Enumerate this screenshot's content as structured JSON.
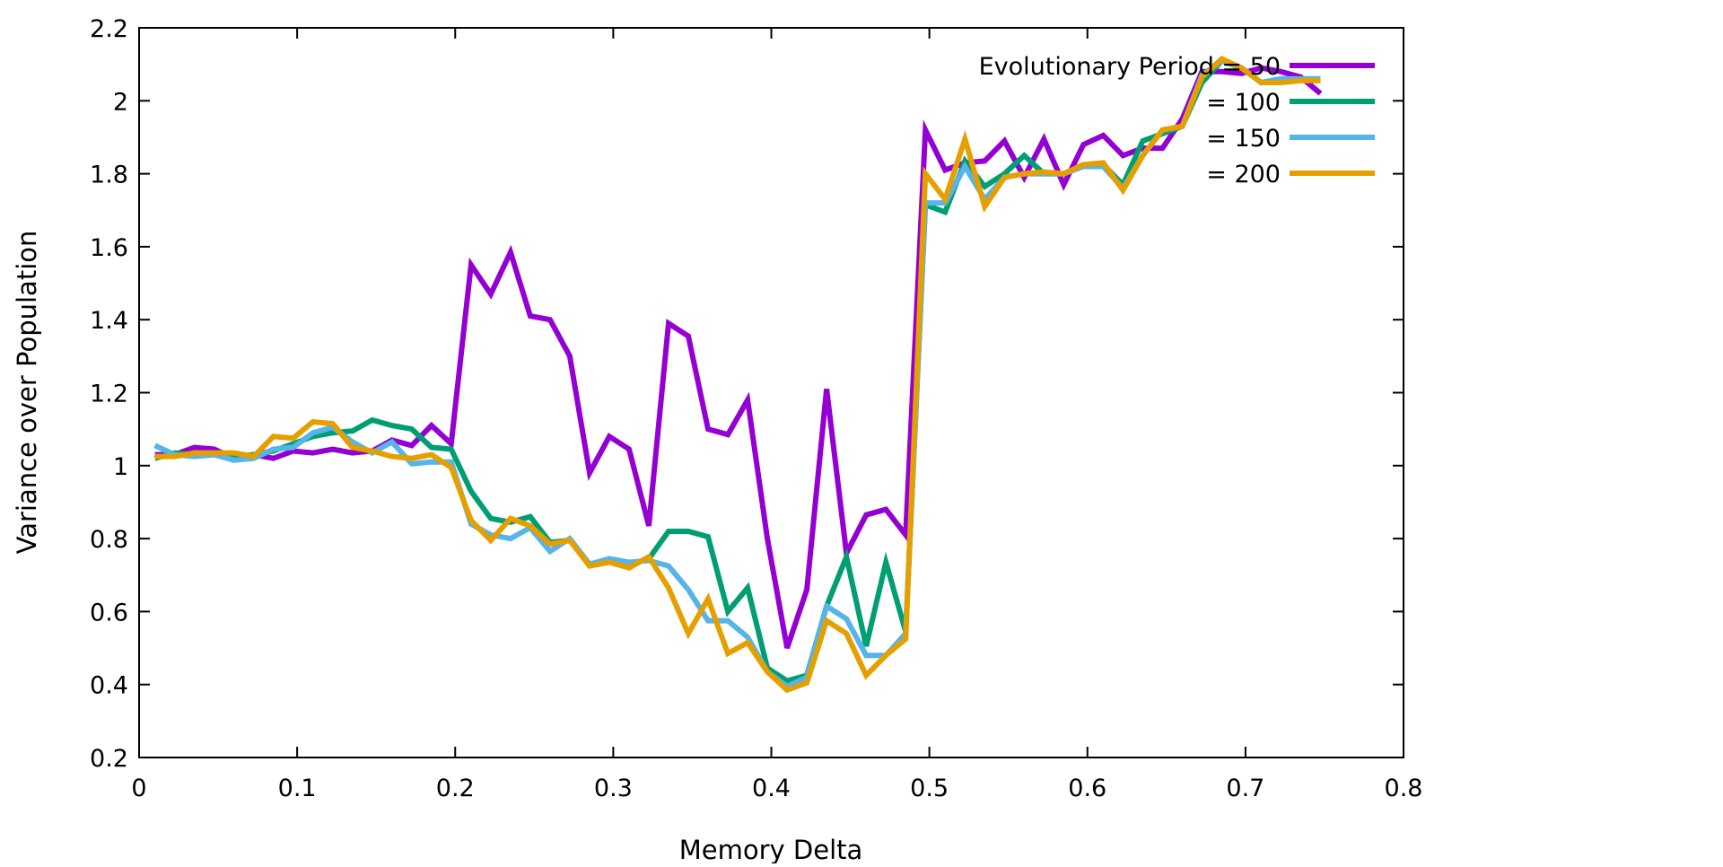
{
  "chart_data": {
    "type": "line",
    "title": "",
    "xlabel": "Memory Delta",
    "ylabel": "Variance over Population",
    "xlim": [
      0,
      0.8
    ],
    "ylim": [
      0.2,
      2.2
    ],
    "xticks": [
      0,
      0.1,
      0.2,
      0.3,
      0.4,
      0.5,
      0.6,
      0.7,
      0.8
    ],
    "xtick_labels": [
      "0",
      "0.1",
      "0.2",
      "0.3",
      "0.4",
      "0.5",
      "0.6",
      "0.7",
      "0.8"
    ],
    "yticks": [
      0.2,
      0.4,
      0.6,
      0.8,
      1.0,
      1.2,
      1.4,
      1.6,
      1.8,
      2.0,
      2.2
    ],
    "ytick_labels": [
      "0.2",
      "0.4",
      "0.6",
      "0.8",
      "1",
      "1.2",
      "1.4",
      "1.6",
      "1.8",
      "2",
      "2.2"
    ],
    "grid": false,
    "legend_position": "top-right",
    "x": [
      0.01,
      0.0225,
      0.035,
      0.0475,
      0.06,
      0.0725,
      0.085,
      0.0975,
      0.11,
      0.1225,
      0.135,
      0.1475,
      0.16,
      0.1725,
      0.185,
      0.1975,
      0.21,
      0.2225,
      0.235,
      0.2475,
      0.26,
      0.2725,
      0.285,
      0.2975,
      0.31,
      0.3225,
      0.335,
      0.3475,
      0.36,
      0.3725,
      0.385,
      0.3975,
      0.41,
      0.4225,
      0.435,
      0.4475,
      0.46,
      0.4725,
      0.485,
      0.4975,
      0.51,
      0.5225,
      0.535,
      0.5475,
      0.56,
      0.5725,
      0.585,
      0.5975,
      0.61,
      0.6225,
      0.635,
      0.6475,
      0.66,
      0.6725,
      0.685,
      0.6975,
      0.71,
      0.7225,
      0.735,
      0.7475
    ],
    "series": [
      {
        "name": "Evolutionary Period = 50",
        "color": "#9400d3",
        "values": [
          1.03,
          1.03,
          1.05,
          1.045,
          1.02,
          1.03,
          1.02,
          1.04,
          1.035,
          1.045,
          1.035,
          1.04,
          1.07,
          1.055,
          1.11,
          1.06,
          1.55,
          1.47,
          1.585,
          1.41,
          1.4,
          1.3,
          0.98,
          1.08,
          1.045,
          0.835,
          1.39,
          1.355,
          1.1,
          1.085,
          1.18,
          0.8,
          0.5,
          0.66,
          1.21,
          0.76,
          0.865,
          0.88,
          0.81,
          1.92,
          1.81,
          1.83,
          1.835,
          1.89,
          1.79,
          1.895,
          1.77,
          1.88,
          1.905,
          1.85,
          1.87,
          1.87,
          1.95,
          2.08,
          2.08,
          2.075,
          2.09,
          2.08,
          2.065,
          2.02
        ]
      },
      {
        "name": "= 100",
        "color": "#009e73",
        "values": [
          1.02,
          1.035,
          1.03,
          1.035,
          1.025,
          1.03,
          1.04,
          1.06,
          1.08,
          1.09,
          1.095,
          1.125,
          1.11,
          1.1,
          1.05,
          1.045,
          0.93,
          0.855,
          0.845,
          0.86,
          0.79,
          0.795,
          0.73,
          0.74,
          0.73,
          0.745,
          0.82,
          0.82,
          0.805,
          0.6,
          0.665,
          0.445,
          0.41,
          0.425,
          0.615,
          0.75,
          0.505,
          0.735,
          0.545,
          1.715,
          1.695,
          1.835,
          1.765,
          1.8,
          1.85,
          1.8,
          1.8,
          1.825,
          1.825,
          1.77,
          1.89,
          1.91,
          1.93,
          2.05,
          2.11,
          2.09,
          2.05,
          2.06,
          2.06,
          2.06
        ]
      },
      {
        "name": "= 150",
        "color": "#56b4e9",
        "values": [
          1.055,
          1.03,
          1.025,
          1.03,
          1.015,
          1.02,
          1.045,
          1.05,
          1.09,
          1.105,
          1.065,
          1.035,
          1.065,
          1.005,
          1.01,
          1.01,
          0.84,
          0.81,
          0.8,
          0.83,
          0.765,
          0.8,
          0.73,
          0.745,
          0.735,
          0.74,
          0.725,
          0.66,
          0.575,
          0.575,
          0.53,
          0.435,
          0.395,
          0.42,
          0.615,
          0.58,
          0.48,
          0.48,
          0.54,
          1.72,
          1.72,
          1.82,
          1.73,
          1.79,
          1.8,
          1.8,
          1.8,
          1.82,
          1.82,
          1.76,
          1.85,
          1.92,
          1.93,
          2.07,
          2.11,
          2.09,
          2.05,
          2.06,
          2.06,
          2.06
        ]
      },
      {
        "name": "= 200",
        "color": "#e69f00",
        "values": [
          1.025,
          1.025,
          1.035,
          1.035,
          1.035,
          1.025,
          1.08,
          1.075,
          1.12,
          1.115,
          1.05,
          1.04,
          1.025,
          1.02,
          1.03,
          0.995,
          0.85,
          0.795,
          0.855,
          0.835,
          0.785,
          0.795,
          0.725,
          0.735,
          0.72,
          0.75,
          0.665,
          0.54,
          0.635,
          0.485,
          0.515,
          0.435,
          0.385,
          0.405,
          0.575,
          0.54,
          0.425,
          0.48,
          0.525,
          1.8,
          1.73,
          1.895,
          1.71,
          1.79,
          1.8,
          1.805,
          1.8,
          1.825,
          1.83,
          1.755,
          1.85,
          1.92,
          1.93,
          2.065,
          2.115,
          2.09,
          2.05,
          2.05,
          2.055,
          2.055
        ]
      }
    ]
  }
}
